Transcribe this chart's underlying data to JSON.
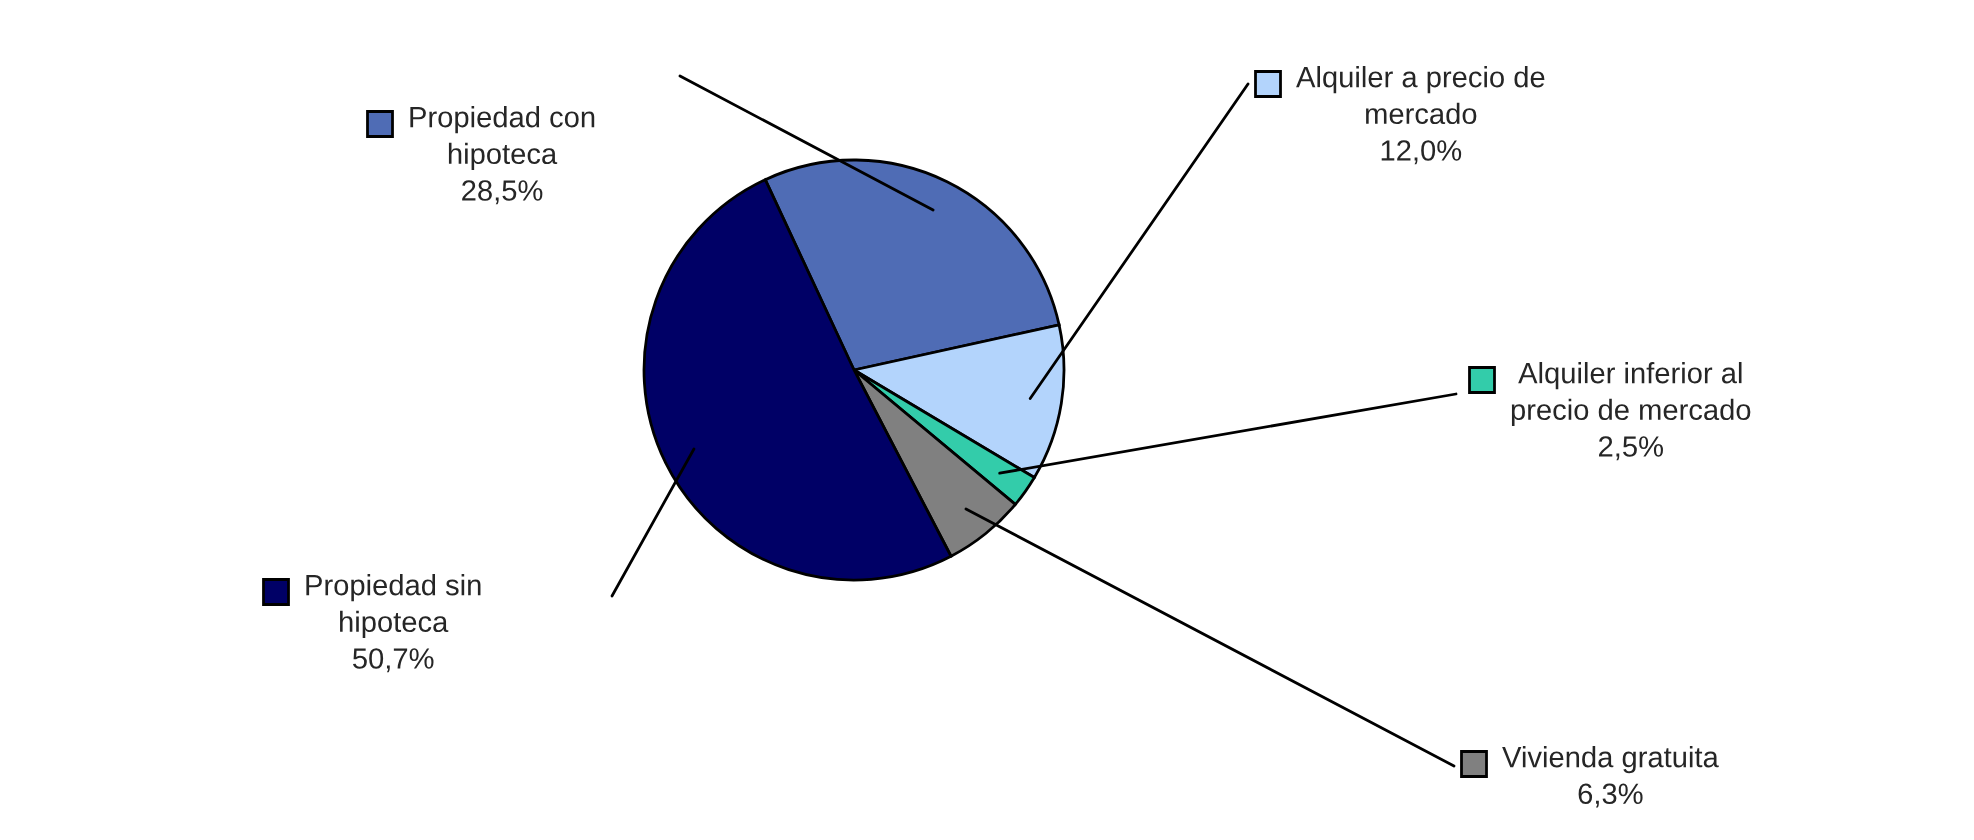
{
  "chart_data": {
    "type": "pie",
    "categories": [
      "Propiedad con\nhipoteca",
      "Alquiler a precio de\nmercado",
      "Alquiler inferior al\nprecio de mercado",
      "Vivienda gratuita",
      "Propiedad sin\nhipoteca"
    ],
    "values": [
      28.5,
      12.0,
      2.5,
      6.3,
      50.7
    ],
    "value_labels": [
      "28,5%",
      "12,0%",
      "2,5%",
      "6,3%",
      "50,7%"
    ],
    "colors": [
      "#4f6cb5",
      "#b3d4fc",
      "#33ccaa",
      "#808080",
      "#000066"
    ],
    "legend": "right"
  }
}
